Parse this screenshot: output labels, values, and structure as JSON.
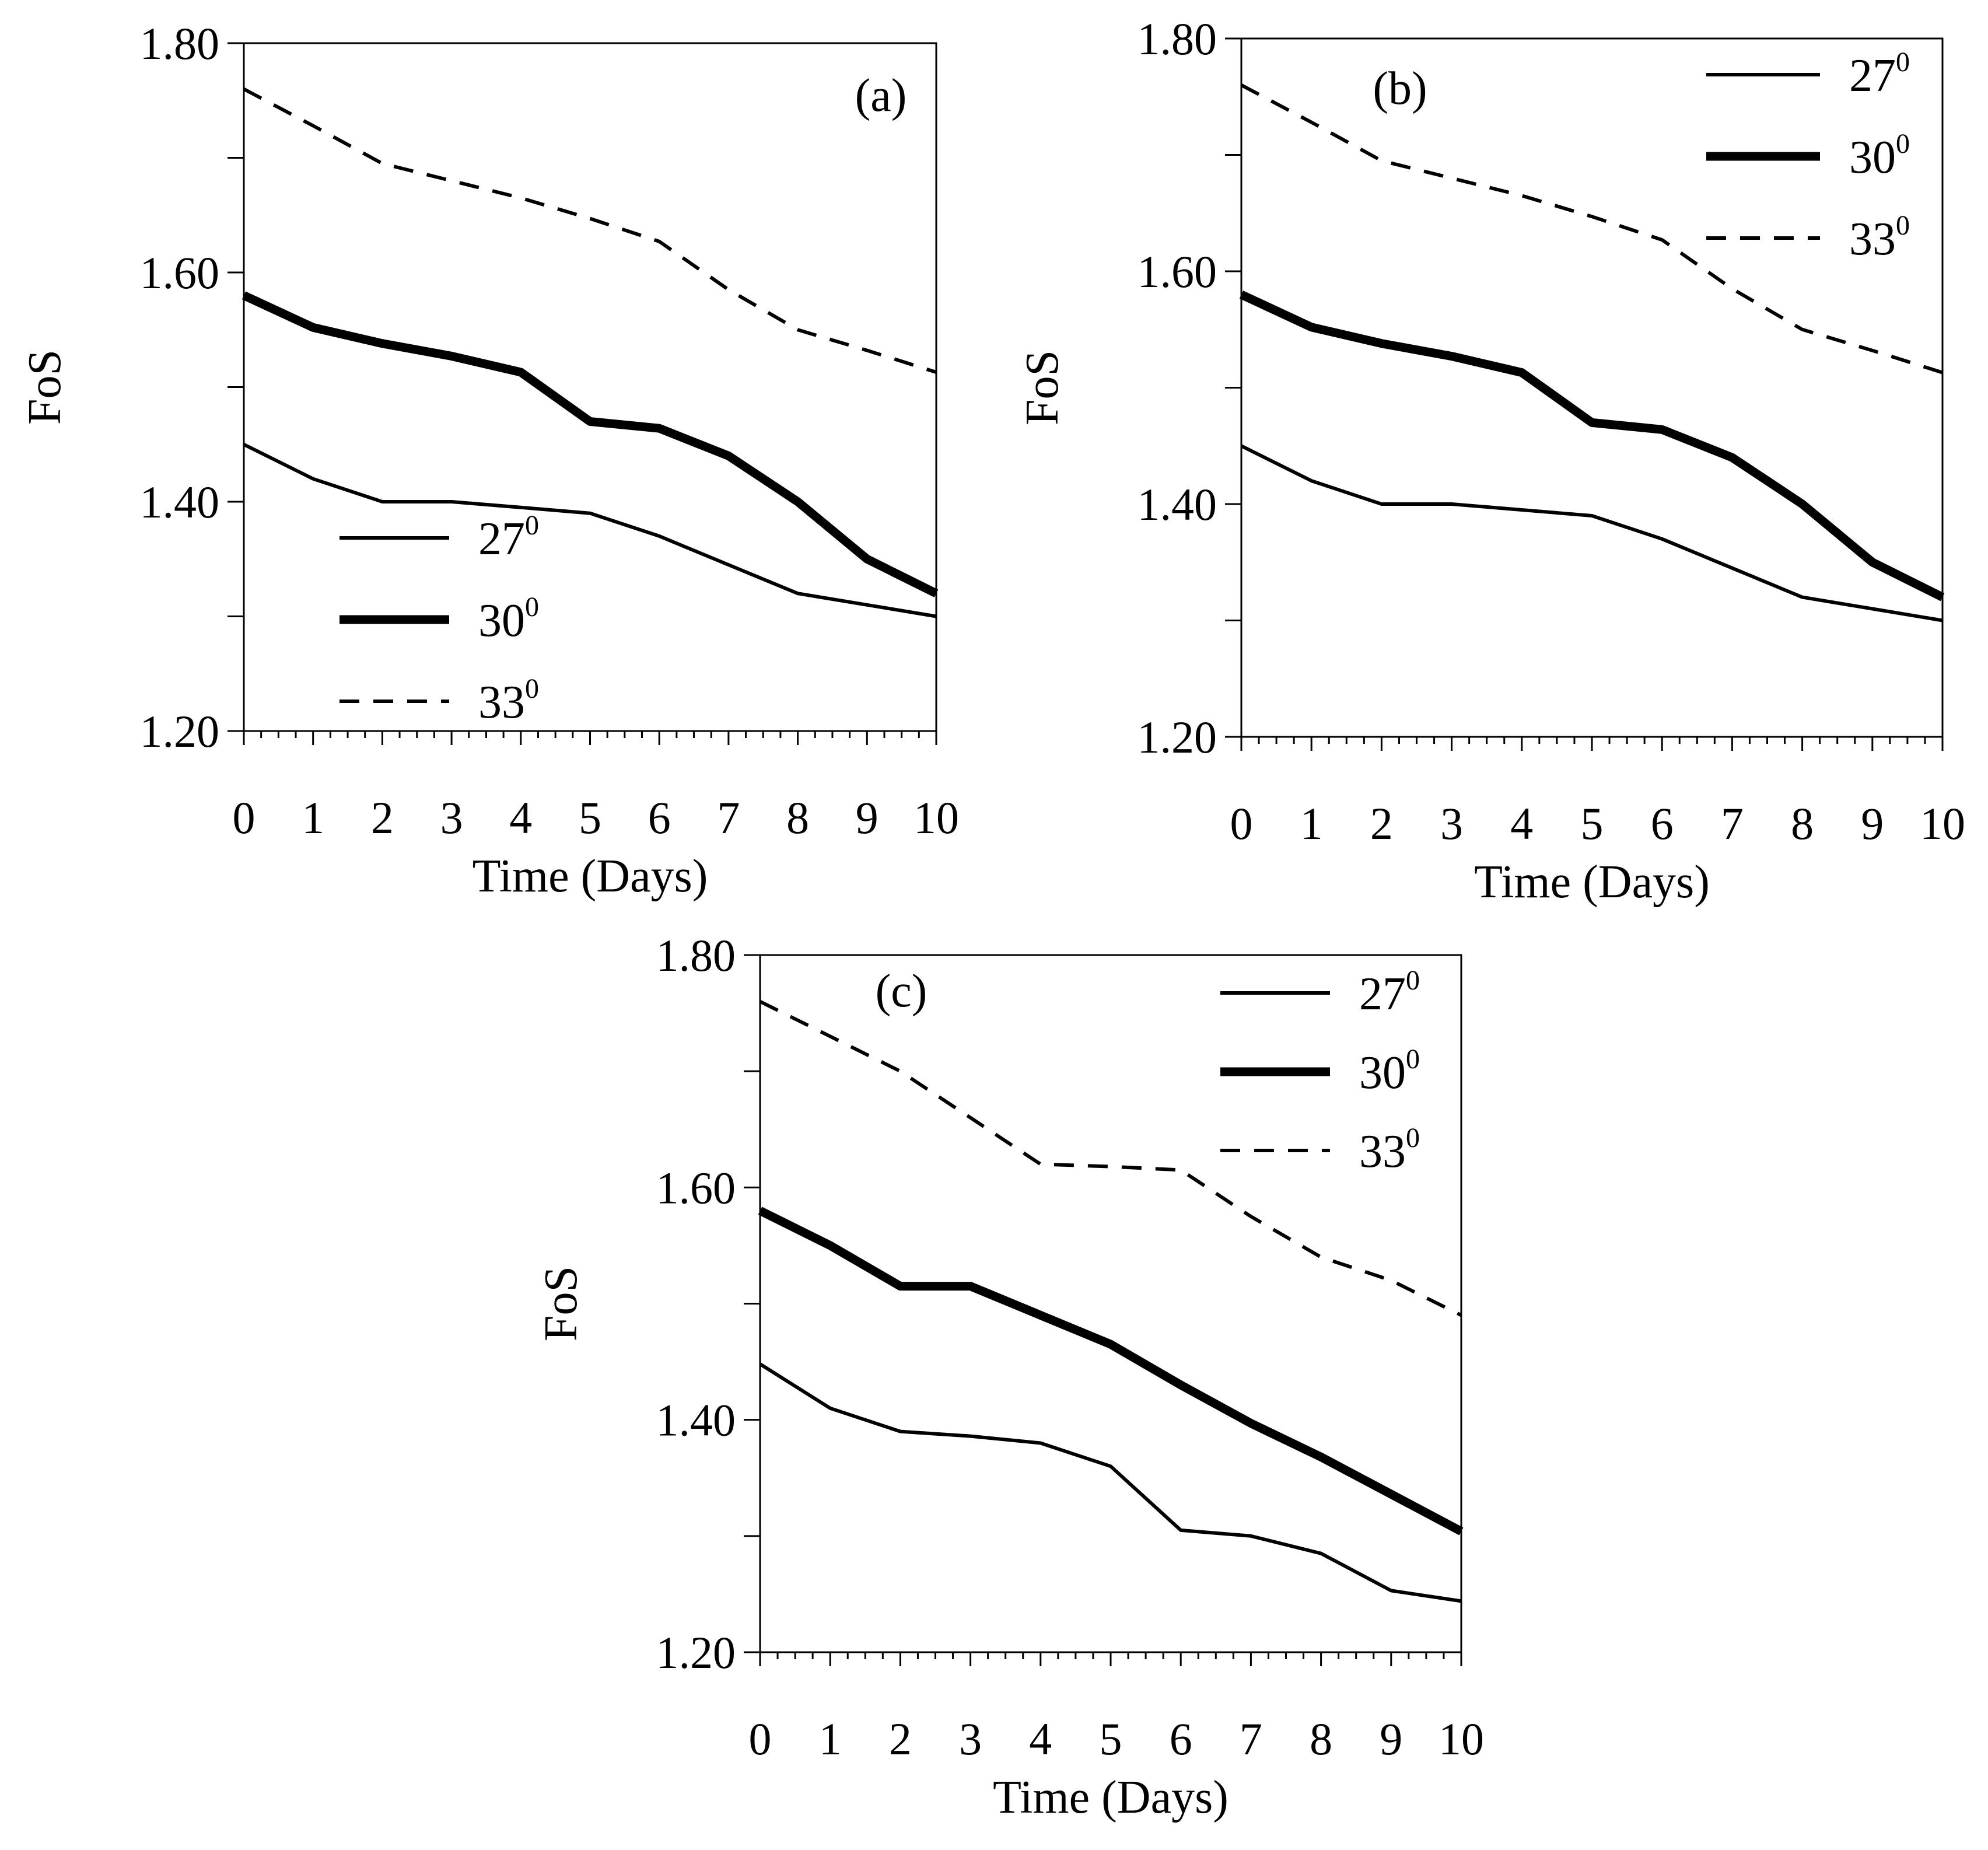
{
  "figure": {
    "chart_data": [
      {
        "type": "line",
        "panel_label": "(a)",
        "xlabel": "Time (Days)",
        "ylabel": "FoS",
        "xlim": [
          0,
          10
        ],
        "ylim": [
          1.2,
          1.8
        ],
        "x_tick_labels": [
          "0",
          "1",
          "2",
          "3",
          "4",
          "5",
          "6",
          "7",
          "8",
          "9",
          "10"
        ],
        "y_tick_labels": [
          "1.20",
          "1.40",
          "1.60",
          "1.80"
        ],
        "x": [
          0,
          1,
          2,
          3,
          4,
          5,
          6,
          7,
          8,
          9,
          10
        ],
        "legend_position": "bottom-left",
        "series": [
          {
            "name": "27",
            "name_sup": "0",
            "style": "thin",
            "values": [
              1.45,
              1.42,
              1.4,
              1.4,
              1.395,
              1.39,
              1.37,
              1.345,
              1.32,
              1.31,
              1.3
            ]
          },
          {
            "name": "30",
            "name_sup": "0",
            "style": "thick",
            "values": [
              1.58,
              1.552,
              1.538,
              1.527,
              1.513,
              1.47,
              1.464,
              1.44,
              1.4,
              1.35,
              1.32
            ]
          },
          {
            "name": "33",
            "name_sup": "0",
            "style": "dashed",
            "values": [
              1.76,
              1.728,
              1.695,
              1.68,
              1.665,
              1.647,
              1.627,
              1.585,
              1.55,
              1.532,
              1.513
            ]
          }
        ]
      },
      {
        "type": "line",
        "panel_label": "(b)",
        "xlabel": "Time (Days)",
        "ylabel": "FoS",
        "xlim": [
          0,
          10
        ],
        "ylim": [
          1.2,
          1.8
        ],
        "x_tick_labels": [
          "0",
          "1",
          "2",
          "3",
          "4",
          "5",
          "6",
          "7",
          "8",
          "9",
          "10"
        ],
        "y_tick_labels": [
          "1.20",
          "1.40",
          "1.60",
          "1.80"
        ],
        "x": [
          0,
          1,
          2,
          3,
          4,
          5,
          6,
          7,
          8,
          9,
          10
        ],
        "legend_position": "top-right",
        "series": [
          {
            "name": "27",
            "name_sup": "0",
            "style": "thin",
            "values": [
              1.45,
              1.42,
              1.4,
              1.4,
              1.395,
              1.39,
              1.37,
              1.345,
              1.32,
              1.31,
              1.3
            ]
          },
          {
            "name": "30",
            "name_sup": "0",
            "style": "thick",
            "values": [
              1.58,
              1.552,
              1.538,
              1.527,
              1.513,
              1.47,
              1.464,
              1.44,
              1.4,
              1.35,
              1.32
            ]
          },
          {
            "name": "33",
            "name_sup": "0",
            "style": "dashed",
            "values": [
              1.76,
              1.728,
              1.695,
              1.68,
              1.665,
              1.647,
              1.627,
              1.585,
              1.55,
              1.532,
              1.513
            ]
          }
        ]
      },
      {
        "type": "line",
        "panel_label": "(c)",
        "xlabel": "Time (Days)",
        "ylabel": "FoS",
        "xlim": [
          0,
          10
        ],
        "ylim": [
          1.2,
          1.8
        ],
        "x_tick_labels": [
          "0",
          "1",
          "2",
          "3",
          "4",
          "5",
          "6",
          "7",
          "8",
          "9",
          "10"
        ],
        "y_tick_labels": [
          "1.20",
          "1.40",
          "1.60",
          "1.80"
        ],
        "x": [
          0,
          1,
          2,
          3,
          4,
          5,
          6,
          7,
          8,
          9,
          10
        ],
        "legend_position": "top-right",
        "series": [
          {
            "name": "27",
            "name_sup": "0",
            "style": "thin",
            "values": [
              1.448,
              1.41,
              1.39,
              1.386,
              1.38,
              1.36,
              1.305,
              1.3,
              1.285,
              1.253,
              1.244
            ]
          },
          {
            "name": "30",
            "name_sup": "0",
            "style": "thick",
            "values": [
              1.58,
              1.55,
              1.515,
              1.515,
              1.49,
              1.465,
              1.43,
              1.397,
              1.368,
              1.336,
              1.304
            ]
          },
          {
            "name": "33",
            "name_sup": "0",
            "style": "dashed",
            "values": [
              1.76,
              1.73,
              1.7,
              1.66,
              1.62,
              1.618,
              1.615,
              1.575,
              1.54,
              1.52,
              1.49
            ]
          }
        ]
      }
    ]
  }
}
